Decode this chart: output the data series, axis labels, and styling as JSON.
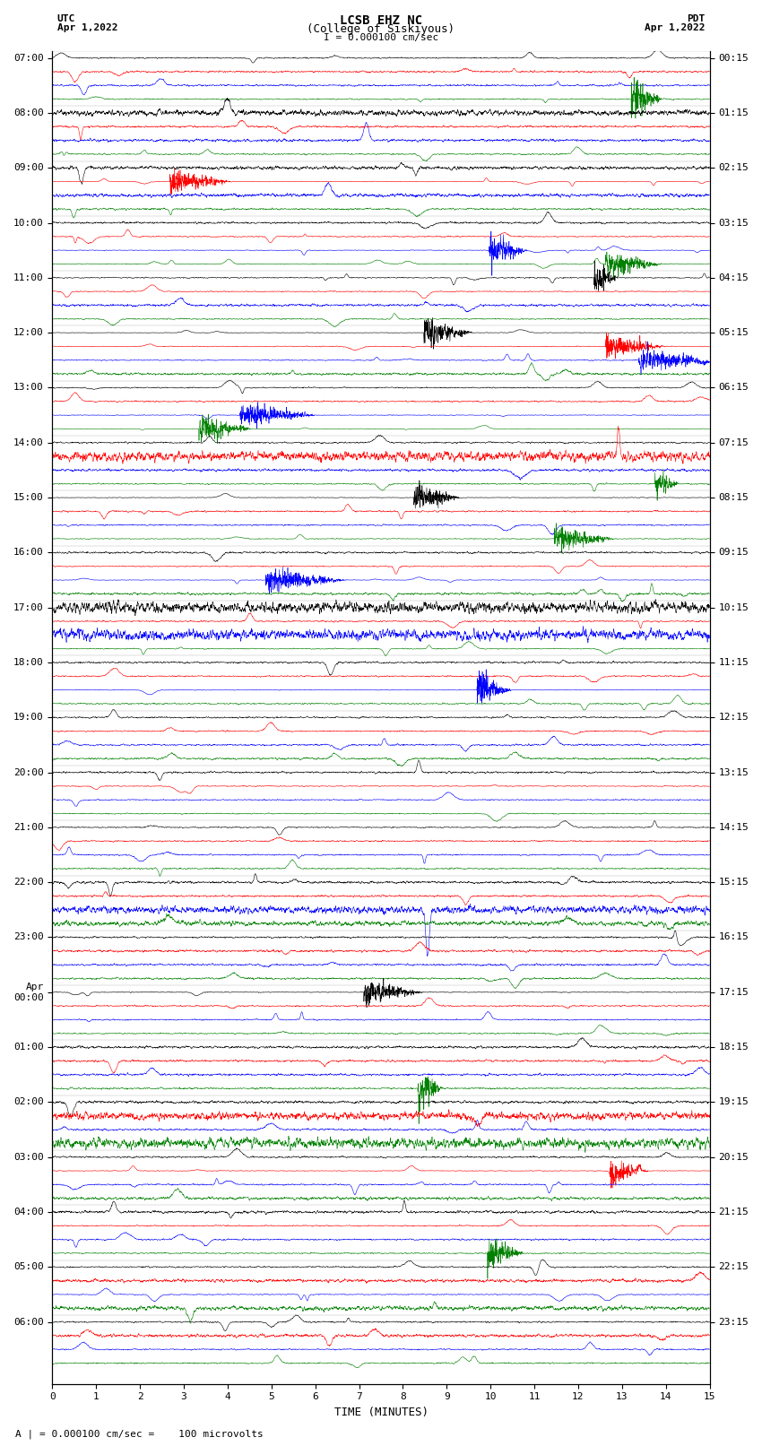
{
  "title_line1": "LCSB EHZ NC",
  "title_line2": "(College of Siskiyous)",
  "scale_label": "I = 0.000100 cm/sec",
  "bottom_label": "A | = 0.000100 cm/sec =    100 microvolts",
  "xlabel": "TIME (MINUTES)",
  "utc_label": "UTC",
  "utc_date": "Apr 1,2022",
  "pdt_label": "PDT",
  "pdt_date": "Apr 1,2022",
  "left_times": [
    "07:00",
    "08:00",
    "09:00",
    "10:00",
    "11:00",
    "12:00",
    "13:00",
    "14:00",
    "15:00",
    "16:00",
    "17:00",
    "18:00",
    "19:00",
    "20:00",
    "21:00",
    "22:00",
    "23:00",
    "Apr\n00:00",
    "01:00",
    "02:00",
    "03:00",
    "04:00",
    "05:00",
    "06:00"
  ],
  "right_times": [
    "00:15",
    "01:15",
    "02:15",
    "03:15",
    "04:15",
    "05:15",
    "06:15",
    "07:15",
    "08:15",
    "09:15",
    "10:15",
    "11:15",
    "12:15",
    "13:15",
    "14:15",
    "15:15",
    "16:15",
    "17:15",
    "18:15",
    "19:15",
    "20:15",
    "21:15",
    "22:15",
    "23:15"
  ],
  "n_hours": 24,
  "n_traces_per_hour": 4,
  "trace_colors": [
    "black",
    "red",
    "blue",
    "green"
  ],
  "xmin": 0,
  "xmax": 15,
  "xticks": [
    0,
    1,
    2,
    3,
    4,
    5,
    6,
    7,
    8,
    9,
    10,
    11,
    12,
    13,
    14,
    15
  ],
  "bg_color": "#ffffff",
  "fig_width": 8.5,
  "fig_height": 16.13,
  "dpi": 100,
  "seed": 42
}
